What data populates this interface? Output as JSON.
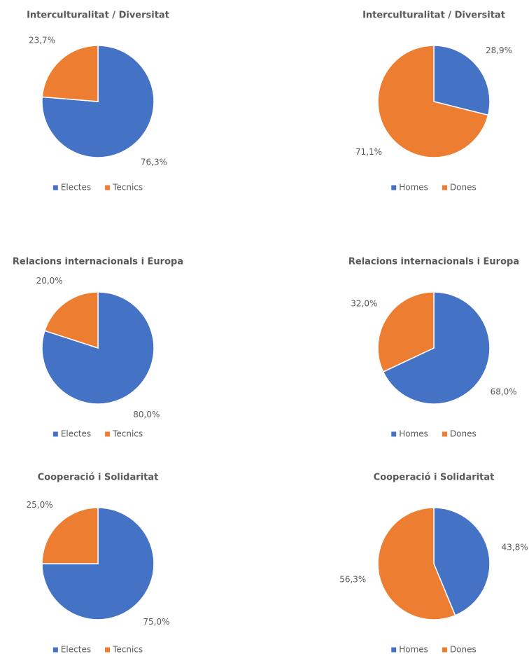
{
  "chart_data": [
    {
      "type": "pie",
      "title": "Interculturalitat / Diversitat",
      "categories": [
        "Electes",
        "Tecnics"
      ],
      "values": [
        76.3,
        23.7
      ],
      "value_labels": [
        "76,3%",
        "23,7%"
      ],
      "colors": [
        "#4472c4",
        "#ed7d31"
      ]
    },
    {
      "type": "pie",
      "title": "Interculturalitat / Diversitat",
      "categories": [
        "Homes",
        "Dones"
      ],
      "values": [
        28.9,
        71.1
      ],
      "value_labels": [
        "28,9%",
        "71,1%"
      ],
      "colors": [
        "#4472c4",
        "#ed7d31"
      ]
    },
    {
      "type": "pie",
      "title": "Relacions internacionals i Europa",
      "categories": [
        "Electes",
        "Tecnics"
      ],
      "values": [
        80.0,
        20.0
      ],
      "value_labels": [
        "80,0%",
        "20,0%"
      ],
      "colors": [
        "#4472c4",
        "#ed7d31"
      ]
    },
    {
      "type": "pie",
      "title": "Relacions internacionals i Europa",
      "categories": [
        "Homes",
        "Dones"
      ],
      "values": [
        68.0,
        32.0
      ],
      "value_labels": [
        "68,0%",
        "32,0%"
      ],
      "colors": [
        "#4472c4",
        "#ed7d31"
      ]
    },
    {
      "type": "pie",
      "title": "Cooperació i Solidaritat",
      "categories": [
        "Electes",
        "Tecnics"
      ],
      "values": [
        75.0,
        25.0
      ],
      "value_labels": [
        "75,0%",
        "25,0%"
      ],
      "colors": [
        "#4472c4",
        "#ed7d31"
      ]
    },
    {
      "type": "pie",
      "title": "Cooperació i Solidaritat",
      "categories": [
        "Homes",
        "Dones"
      ],
      "values": [
        43.8,
        56.3
      ],
      "value_labels": [
        "43,8%",
        "56,3%"
      ],
      "colors": [
        "#4472c4",
        "#ed7d31"
      ]
    }
  ]
}
